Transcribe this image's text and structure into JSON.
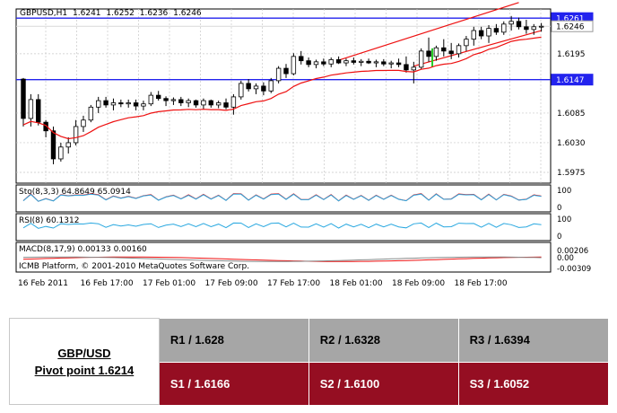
{
  "chart_data": {
    "type": "candlestick",
    "symbol_line": {
      "symbol": "GBPUSD,H1",
      "open": "1.6241",
      "high": "1.6252",
      "low": "1.6236",
      "close": "1.6246"
    },
    "price_ticks": [
      "1.6195",
      "1.6085",
      "1.6030",
      "1.5975"
    ],
    "price_range": [
      1.5955,
      1.6278
    ],
    "horizontal_levels": [
      {
        "label": "1.6261",
        "value": 1.6261,
        "color": "#2323ee"
      },
      {
        "label": "1.6246",
        "value": 1.6246,
        "color": "#d9d9d9"
      },
      {
        "label": "1.6147",
        "value": 1.6147,
        "color": "#2323ee"
      }
    ],
    "time_labels": [
      "16 Feb 2011",
      "16 Feb 17:00",
      "17 Feb 01:00",
      "17 Feb 09:00",
      "17 Feb 17:00",
      "18 Feb 01:00",
      "18 Feb 09:00",
      "18 Feb 17:00"
    ],
    "candles": [
      [
        1.6148,
        1.615,
        1.606,
        1.6075
      ],
      [
        1.6075,
        1.612,
        1.606,
        1.611
      ],
      [
        1.611,
        1.612,
        1.6062,
        1.6068
      ],
      [
        1.6068,
        1.6072,
        1.604,
        1.6052
      ],
      [
        1.6052,
        1.606,
        1.599,
        1.6
      ],
      [
        1.6,
        1.603,
        1.5995,
        1.6022
      ],
      [
        1.6022,
        1.604,
        1.601,
        1.603
      ],
      [
        1.603,
        1.6072,
        1.6025,
        1.606
      ],
      [
        1.606,
        1.608,
        1.605,
        1.6072
      ],
      [
        1.6072,
        1.61,
        1.6068,
        1.6096
      ],
      [
        1.6096,
        1.6115,
        1.6085,
        1.6108
      ],
      [
        1.6108,
        1.6115,
        1.6095,
        1.61
      ],
      [
        1.61,
        1.6112,
        1.609,
        1.6104
      ],
      [
        1.6104,
        1.611,
        1.6096,
        1.6102
      ],
      [
        1.6102,
        1.611,
        1.6095,
        1.6104
      ],
      [
        1.6104,
        1.611,
        1.609,
        1.6098
      ],
      [
        1.6098,
        1.6108,
        1.609,
        1.6102
      ],
      [
        1.6102,
        1.6124,
        1.6098,
        1.6118
      ],
      [
        1.6118,
        1.6126,
        1.6108,
        1.6112
      ],
      [
        1.6112,
        1.6116,
        1.6098,
        1.6108
      ],
      [
        1.6108,
        1.6114,
        1.61,
        1.611
      ],
      [
        1.611,
        1.6115,
        1.6098,
        1.6104
      ],
      [
        1.6104,
        1.6112,
        1.6096,
        1.6108
      ],
      [
        1.6108,
        1.611,
        1.6095,
        1.61
      ],
      [
        1.61,
        1.6112,
        1.6092,
        1.6108
      ],
      [
        1.6108,
        1.611,
        1.6095,
        1.61
      ],
      [
        1.61,
        1.6108,
        1.6094,
        1.6104
      ],
      [
        1.6104,
        1.6112,
        1.6092,
        1.6096
      ],
      [
        1.6096,
        1.612,
        1.6082,
        1.6115
      ],
      [
        1.6115,
        1.6145,
        1.611,
        1.614
      ],
      [
        1.614,
        1.6148,
        1.6125,
        1.613
      ],
      [
        1.613,
        1.614,
        1.612,
        1.6135
      ],
      [
        1.6135,
        1.6142,
        1.6118,
        1.6126
      ],
      [
        1.6126,
        1.615,
        1.6122,
        1.6145
      ],
      [
        1.6145,
        1.6172,
        1.614,
        1.6168
      ],
      [
        1.6168,
        1.6176,
        1.615,
        1.6158
      ],
      [
        1.6158,
        1.6196,
        1.6155,
        1.619
      ],
      [
        1.619,
        1.62,
        1.6175,
        1.6182
      ],
      [
        1.6182,
        1.6188,
        1.617,
        1.6175
      ],
      [
        1.6175,
        1.6184,
        1.6168,
        1.618
      ],
      [
        1.618,
        1.6186,
        1.6172,
        1.6176
      ],
      [
        1.6176,
        1.6188,
        1.617,
        1.6184
      ],
      [
        1.6184,
        1.619,
        1.6176,
        1.6178
      ],
      [
        1.6178,
        1.6186,
        1.6172,
        1.6182
      ],
      [
        1.6182,
        1.6188,
        1.6175,
        1.6179
      ],
      [
        1.6179,
        1.6185,
        1.6172,
        1.6181
      ],
      [
        1.6181,
        1.6186,
        1.6176,
        1.6178
      ],
      [
        1.6178,
        1.6184,
        1.617,
        1.618
      ],
      [
        1.618,
        1.6185,
        1.6172,
        1.6176
      ],
      [
        1.6176,
        1.6182,
        1.6168,
        1.6178
      ],
      [
        1.6178,
        1.6186,
        1.617,
        1.6175
      ],
      [
        1.6175,
        1.619,
        1.616,
        1.6165
      ],
      [
        1.6165,
        1.618,
        1.614,
        1.617
      ],
      [
        1.617,
        1.6205,
        1.6166,
        1.62
      ],
      [
        1.62,
        1.6225,
        1.618,
        1.619
      ],
      [
        1.619,
        1.621,
        1.6182,
        1.6206
      ],
      [
        1.6206,
        1.6222,
        1.619,
        1.62
      ],
      [
        1.62,
        1.6215,
        1.6185,
        1.6195
      ],
      [
        1.6195,
        1.6214,
        1.6188,
        1.621
      ],
      [
        1.621,
        1.6228,
        1.62,
        1.6222
      ],
      [
        1.6222,
        1.6245,
        1.621,
        1.6238
      ],
      [
        1.6238,
        1.6245,
        1.6222,
        1.6228
      ],
      [
        1.6228,
        1.6248,
        1.6215,
        1.6242
      ],
      [
        1.6242,
        1.625,
        1.623,
        1.6235
      ],
      [
        1.6235,
        1.6255,
        1.623,
        1.625
      ],
      [
        1.625,
        1.6265,
        1.6238,
        1.6255
      ],
      [
        1.6255,
        1.6262,
        1.624,
        1.6245
      ],
      [
        1.6245,
        1.6258,
        1.6232,
        1.624
      ],
      [
        1.624,
        1.625,
        1.623,
        1.6245
      ],
      [
        1.6245,
        1.6252,
        1.6236,
        1.6246
      ]
    ],
    "colors": {
      "up": "#ffffff",
      "down": "#000000",
      "ma": "#ee1111",
      "channel": "#ee1111",
      "level": "#2323ee",
      "signal": "#22cc22"
    },
    "indicators": [
      {
        "label": "Sto(8,3,3) 64.8649 65.0914",
        "ticks": [
          "100",
          "0"
        ],
        "colors": [
          "#ee1111",
          "#29a8e0"
        ]
      },
      {
        "label": "RSI(8) 60.1312",
        "ticks": [
          "100",
          "0"
        ],
        "colors": [
          "#29a8e0"
        ]
      },
      {
        "label": "MACD(8,17,9) 0.00133 0.00160",
        "ticks": [
          "0.00206",
          "0.00",
          "-0.00309"
        ],
        "colors": [
          "#ee1111",
          "#888888"
        ]
      }
    ],
    "watermark": "ICMB Platform, © 2001-2010 MetaQuotes Software Corp."
  },
  "pivot_table": {
    "pair": "GBP/USD",
    "pivot": "Pivot point 1.6214",
    "resistance": [
      "R1 / 1.628",
      "R2 / 1.6328",
      "R3 / 1.6394"
    ],
    "support": [
      "S1 / 1.6166",
      "S2 / 1.6100",
      "S3 / 1.6052"
    ]
  }
}
